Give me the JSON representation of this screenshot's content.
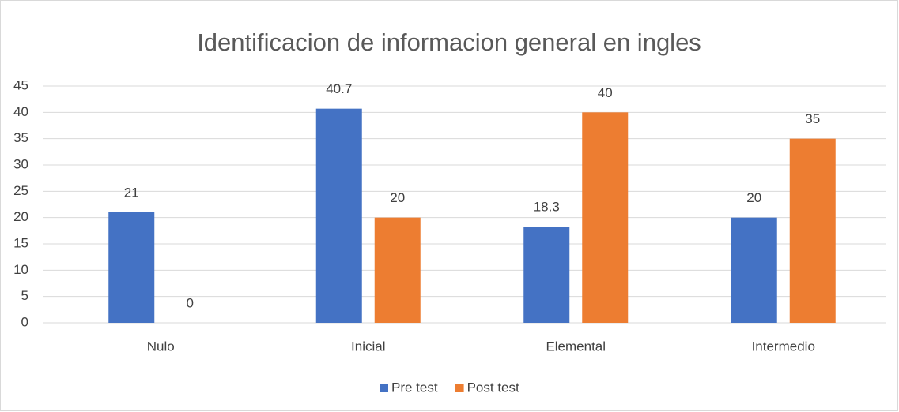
{
  "chart_data": {
    "type": "bar",
    "title": "Identificacion de informacion general en ingles",
    "categories": [
      "Nulo",
      "Inicial",
      "Elemental",
      "Intermedio"
    ],
    "series": [
      {
        "name": "Pre test",
        "color": "#4472c4",
        "values": [
          21,
          40.7,
          18.3,
          20
        ]
      },
      {
        "name": "Post test",
        "color": "#ed7d31",
        "values": [
          0,
          20,
          40,
          35
        ]
      }
    ],
    "ylim": [
      0,
      45
    ],
    "yticks": [
      0,
      5,
      10,
      15,
      20,
      25,
      30,
      35,
      40,
      45
    ],
    "grid": true,
    "legend": "bottom"
  }
}
